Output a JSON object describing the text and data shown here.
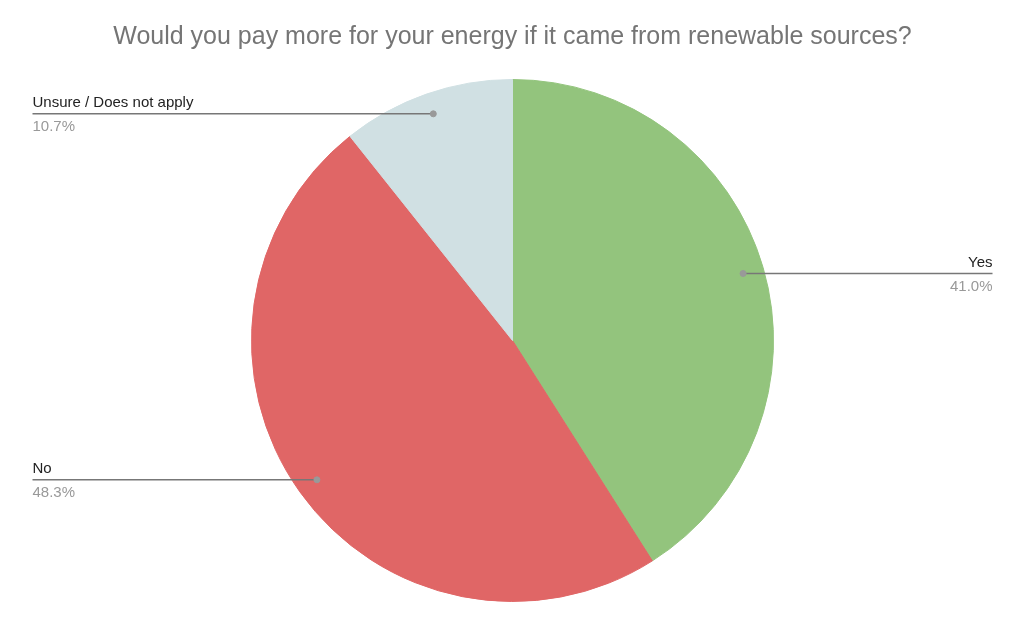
{
  "chart_data": {
    "type": "pie",
    "title": "Would you pay more for your energy if it came from renewable sources?",
    "categories": [
      "Yes",
      "No",
      "Unsure / Does not apply"
    ],
    "values": [
      41.0,
      48.3,
      10.7
    ],
    "colors": [
      "#93c47d",
      "#e06666",
      "#d0e0e3"
    ],
    "value_labels": [
      "41.0%",
      "48.3%",
      "10.7%"
    ]
  }
}
